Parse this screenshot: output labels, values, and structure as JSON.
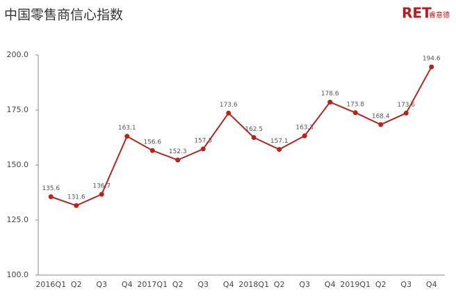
{
  "chart_data": {
    "type": "line",
    "title": "中国零售商信心指数",
    "logo": {
      "mark": "RET",
      "text": "睿意德"
    },
    "categories": [
      "2016Q1",
      "Q2",
      "Q3",
      "Q4",
      "2017Q1",
      "Q2",
      "Q3",
      "Q4",
      "2018Q1",
      "Q2",
      "Q3",
      "Q4",
      "2019Q1",
      "Q2",
      "Q3",
      "Q4"
    ],
    "values": [
      135.6,
      131.6,
      136.7,
      163.1,
      156.6,
      152.3,
      157.3,
      173.6,
      162.5,
      157.1,
      163.3,
      178.6,
      173.8,
      168.4,
      173.6,
      194.6
    ],
    "color": "#b8231b",
    "ylim": [
      100,
      200
    ],
    "yticks": [
      {
        "value": 100,
        "label": "100.0"
      },
      {
        "value": 125,
        "label": "125.0"
      },
      {
        "value": 150,
        "label": "150.0"
      },
      {
        "value": 175,
        "label": "175.0"
      },
      {
        "value": 200,
        "label": "200.0"
      }
    ],
    "grid": false
  }
}
